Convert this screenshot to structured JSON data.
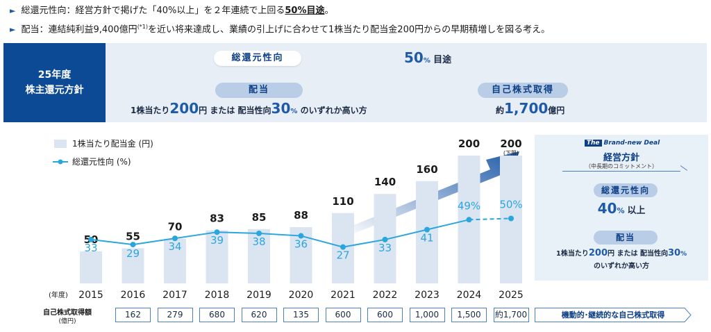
{
  "bullets": [
    {
      "text": "総還元性向：経営方針で掲げた「40%以上」を２年連続で上回る",
      "emph": "50%目途",
      "tail": "。"
    },
    {
      "text": "配当：連結純利益9,400億円",
      "sup": "(*1)",
      "tail": "を近い将来達成し、業績の引上げに合わせて1株当たり配当金200円からの早期積増しを図る考え。"
    }
  ],
  "policy": {
    "title_line1": "25年度",
    "title_line2": "株主還元方針",
    "total_return_label": "総還元性向",
    "total_return_value": "50",
    "total_return_unit": "%",
    "total_return_suffix": "目途",
    "dividend_label": "配当",
    "dividend_prefix": "1株当たり",
    "dividend_value": "200",
    "dividend_unit": "円",
    "dividend_or": "または",
    "payout_label": "配当性向",
    "payout_value": "30",
    "payout_unit": "%",
    "payout_suffix": "のいずれか高い方",
    "buyback_label": "自己株式取得",
    "buyback_prefix": "約",
    "buyback_value": "1,700",
    "buyback_unit": "億円"
  },
  "chart_data": {
    "type": "bar",
    "categories": [
      "2015",
      "2016",
      "2017",
      "2018",
      "2019",
      "2020",
      "2021",
      "2022",
      "2023",
      "2024",
      "2025"
    ],
    "x_unit_label": "(年度)",
    "series": [
      {
        "name": "1株当たり配当金 (円)",
        "type": "bar",
        "values": [
          50,
          55,
          70,
          83,
          85,
          88,
          110,
          140,
          160,
          200,
          200
        ],
        "color": "#dbe5f2"
      },
      {
        "name": "総還元性向 (%)",
        "type": "line",
        "values": [
          33,
          29,
          34,
          39,
          38,
          36,
          27,
          33,
          41,
          49,
          50
        ],
        "color": "#2aa6dc",
        "dashed_last_segment": true
      }
    ],
    "annotations": {
      "last_bar_note": "(下限)",
      "line_last_two_with_percent": [
        "49%",
        "50%"
      ]
    },
    "buyback": {
      "label": "自己株式取得額",
      "unit": "(億円)",
      "values": [
        "162",
        "279",
        "680",
        "620",
        "135",
        "600",
        "600",
        "1,000",
        "1,500",
        "約1,700"
      ],
      "future_label": "機動的･継続的な自己株式取得"
    }
  },
  "brand_panel": {
    "tag_the": "The",
    "tag_text": "Brand-new Deal",
    "title": "経営方針",
    "subtitle": "（中長期のコミットメント）",
    "return_label": "総還元性向",
    "return_value": "40",
    "return_unit": "%",
    "return_suffix": "以上",
    "dividend_label": "配当",
    "dividend_line1_prefix": "1株当たり",
    "dividend_line1_value": "200",
    "dividend_line1_unit": "円",
    "dividend_line1_or": "または",
    "dividend_line1_payout": "配当性向",
    "dividend_line1_payout_value": "30",
    "dividend_line1_payout_unit": "%",
    "dividend_line2": "のいずれか高い方"
  }
}
